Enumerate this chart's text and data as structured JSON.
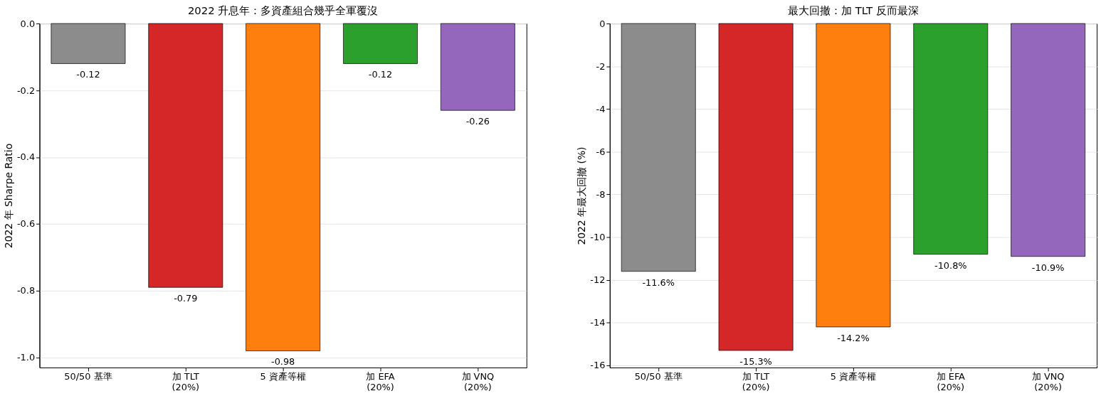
{
  "chart_data": [
    {
      "type": "bar",
      "title": "2022 升息年：多資產組合幾乎全軍覆沒",
      "ylabel": "2022 年 Sharpe Ratio",
      "categories": [
        "50/50 基準",
        "加 TLT\n(20%)",
        "5 資產等權",
        "加 EFA\n(20%)",
        "加 VNQ\n(20%)"
      ],
      "values": [
        -0.12,
        -0.79,
        -0.98,
        -0.12,
        -0.26
      ],
      "colors": [
        "#8c8c8c",
        "#d62728",
        "#ff7f0e",
        "#2ca02c",
        "#9467bd"
      ],
      "ylim": [
        -1.03,
        0
      ],
      "yticks": [
        {
          "value": 0,
          "label": "0.0"
        },
        {
          "value": -0.2,
          "label": "-0.2"
        },
        {
          "value": -0.4,
          "label": "-0.4"
        },
        {
          "value": -0.6,
          "label": "-0.6"
        },
        {
          "value": -0.8,
          "label": "-0.8"
        },
        {
          "value": -1,
          "label": "-1.0"
        }
      ],
      "grid": "y",
      "data_labels": true
    },
    {
      "type": "bar",
      "title": "最大回撤：加 TLT 反而最深",
      "ylabel": "2022 年最大回撤 (%)",
      "categories": [
        "50/50 基準",
        "加 TLT\n(20%)",
        "5 資產等權",
        "加 EFA\n(20%)",
        "加 VNQ\n(20%)"
      ],
      "values": [
        -11.6,
        -15.3,
        -14.2,
        -10.8,
        -10.9
      ],
      "colors": [
        "#8c8c8c",
        "#d62728",
        "#ff7f0e",
        "#2ca02c",
        "#9467bd"
      ],
      "ylim": [
        -16.1,
        0
      ],
      "yticks": [
        0,
        -2,
        -4,
        -6,
        -8,
        -10,
        -12,
        -14,
        -16
      ],
      "grid": "y",
      "value_labels": [
        "-11.6%",
        "-15.3%",
        "-14.2%",
        "-10.8%",
        "-10.9%"
      ]
    }
  ]
}
